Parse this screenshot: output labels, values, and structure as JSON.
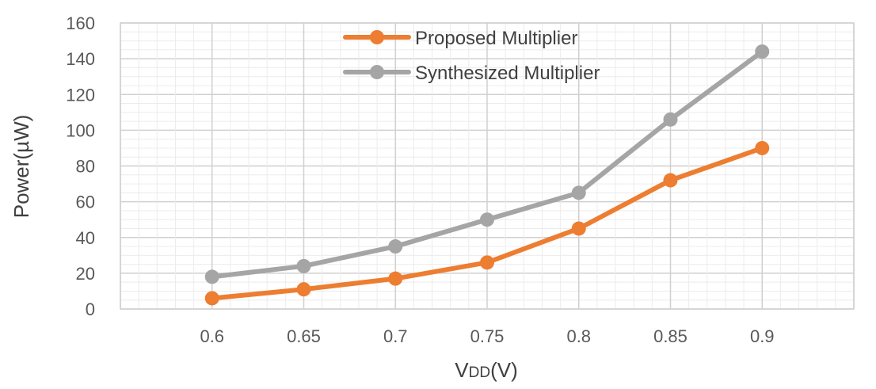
{
  "chart_data": {
    "type": "line",
    "x": [
      0.6,
      0.65,
      0.7,
      0.75,
      0.8,
      0.85,
      0.9
    ],
    "x_tick_labels": [
      "0.6",
      "0.65",
      "0.7",
      "0.75",
      "0.8",
      "0.85",
      "0.9"
    ],
    "series": [
      {
        "name": "Proposed Multiplier",
        "color": "#ED7D31",
        "values": [
          6,
          11,
          17,
          26,
          45,
          72,
          90
        ]
      },
      {
        "name": "Synthesized Multiplier",
        "color": "#A5A5A5",
        "values": [
          18,
          24,
          35,
          50,
          65,
          106,
          144
        ]
      }
    ],
    "title": "",
    "xlabel": "VDD(V)",
    "xlabel_main": "V",
    "xlabel_sub": "DD",
    "xlabel_unit": "(V)",
    "ylabel": "Power(µW)",
    "ylim": [
      0,
      160
    ],
    "y_ticks": [
      0,
      20,
      40,
      60,
      80,
      100,
      120,
      140,
      160
    ],
    "grid": true,
    "legend_position": "top-center"
  }
}
